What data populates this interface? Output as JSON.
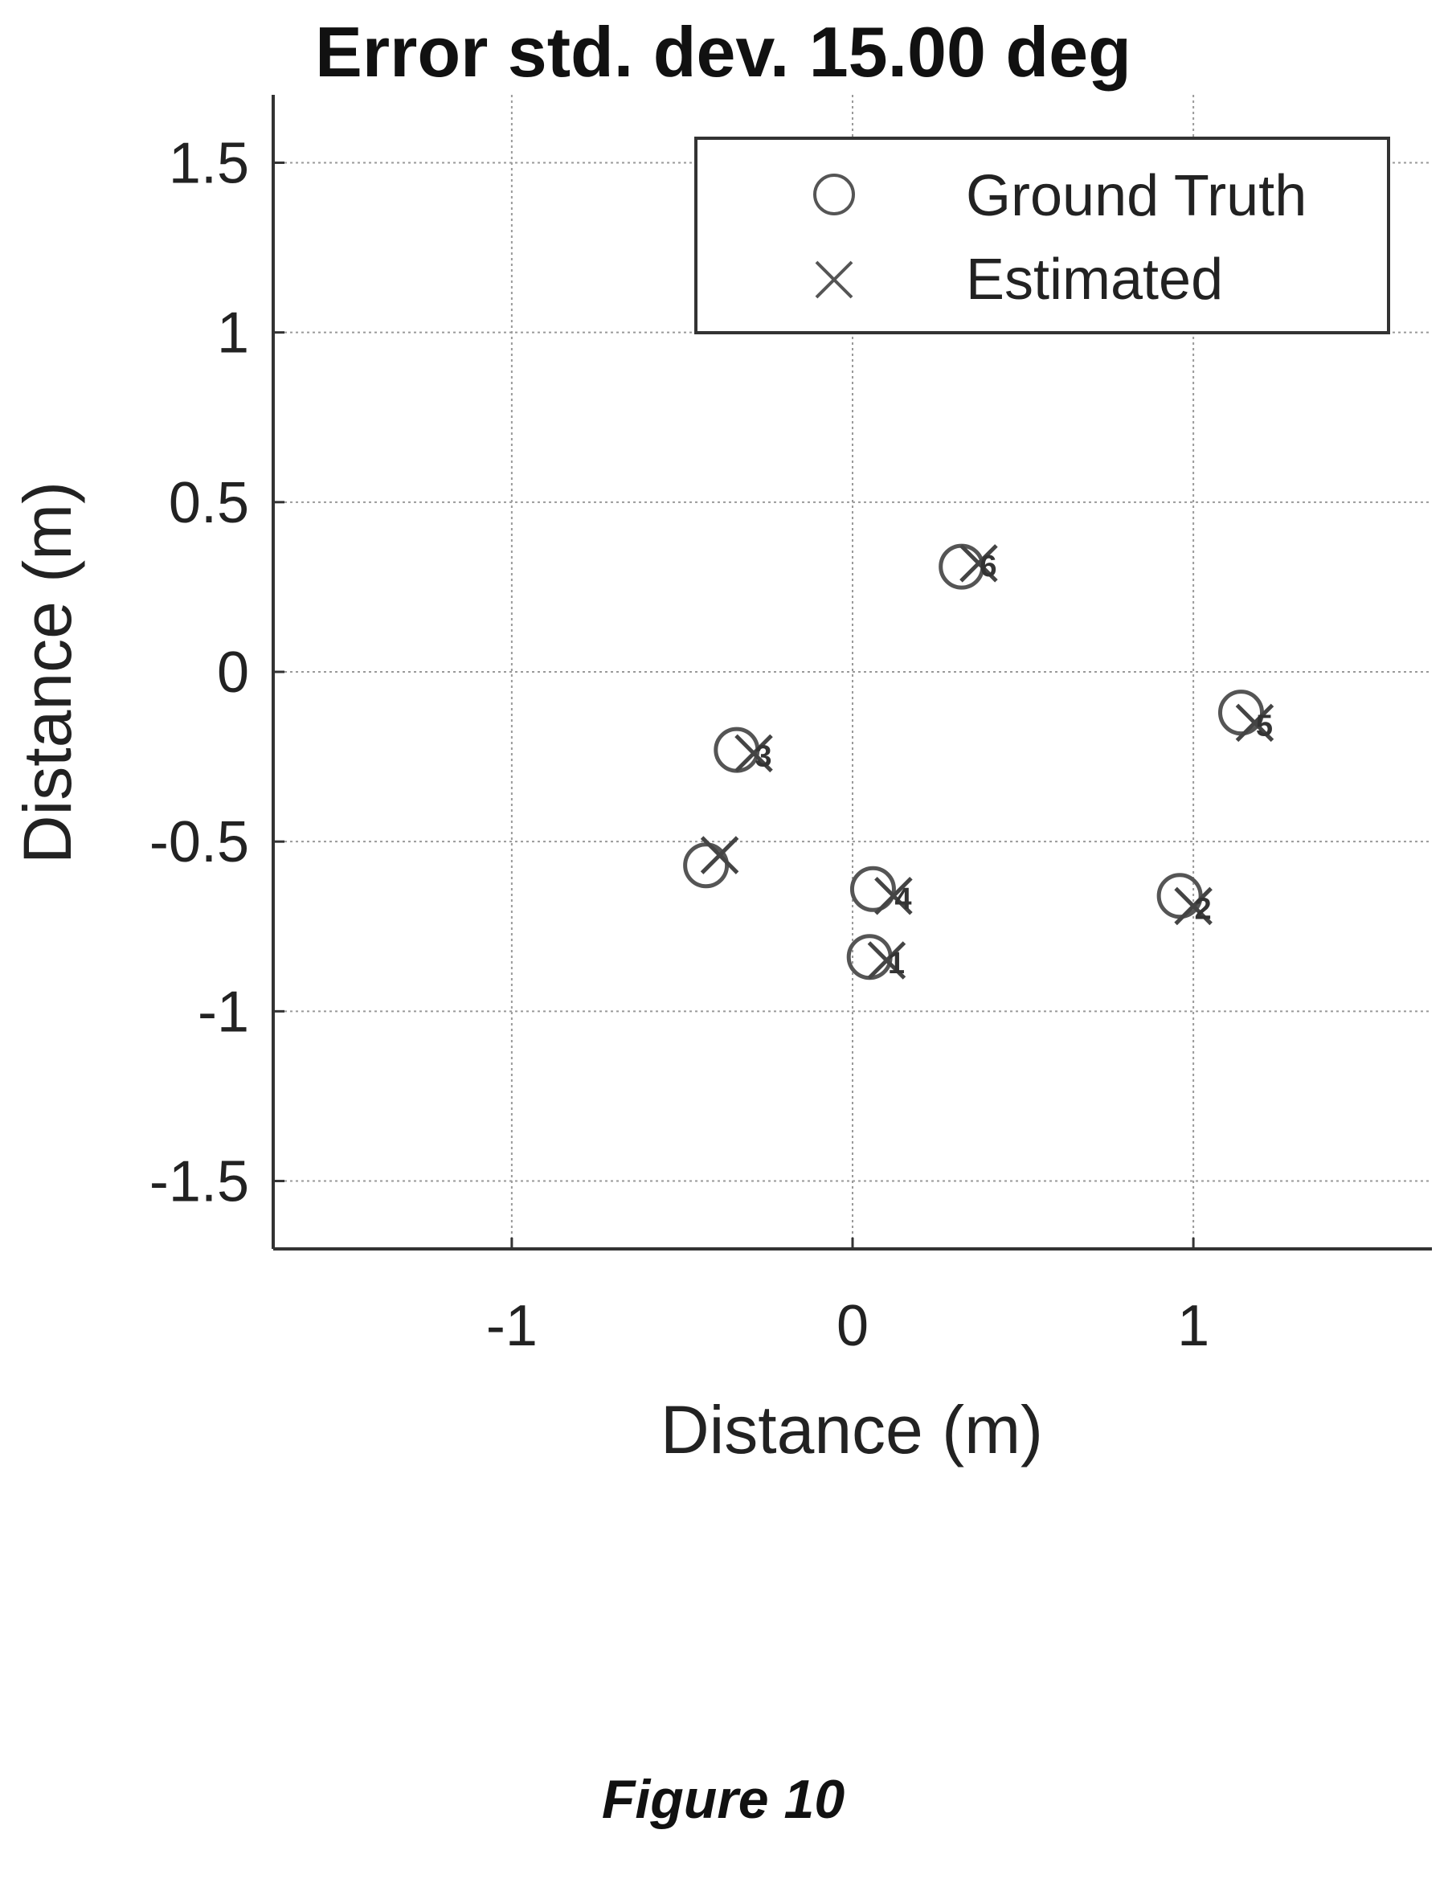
{
  "chart_data": {
    "type": "scatter",
    "title": "Error std. dev. 15.00 deg",
    "xlabel": "Distance (m)",
    "ylabel": "Distance (m)",
    "xlim": [
      -1.7,
      1.7
    ],
    "ylim": [
      -1.7,
      1.7
    ],
    "xticks": [
      -1,
      0,
      1
    ],
    "xtick_labels": [
      "-1",
      "0",
      "1"
    ],
    "yticks": [
      1.5,
      1,
      0.5,
      0,
      -0.5,
      -1,
      -1.5
    ],
    "ytick_labels": [
      "1.5",
      "1",
      "0.5",
      "0",
      "-0.5",
      "-1",
      "-1.5"
    ],
    "grid": true,
    "legend_position": "top-right",
    "series": [
      {
        "name": "Ground Truth",
        "marker": "circle",
        "points": [
          {
            "label": "1",
            "x": 0.05,
            "y": -0.84
          },
          {
            "label": "2",
            "x": 0.96,
            "y": -0.66
          },
          {
            "label": "3",
            "x": -0.34,
            "y": -0.23
          },
          {
            "label": "4",
            "x": 0.06,
            "y": -0.64
          },
          {
            "label": "5",
            "x": 1.14,
            "y": -0.12
          },
          {
            "label": "6",
            "x": 0.32,
            "y": 0.31
          },
          {
            "label": "",
            "x": -0.43,
            "y": -0.57
          }
        ]
      },
      {
        "name": "Estimated",
        "marker": "x",
        "points": [
          {
            "label": "1",
            "x": 0.1,
            "y": -0.85
          },
          {
            "label": "2",
            "x": 1.0,
            "y": -0.69
          },
          {
            "label": "3",
            "x": -0.29,
            "y": -0.24
          },
          {
            "label": "4",
            "x": 0.12,
            "y": -0.66
          },
          {
            "label": "5",
            "x": 1.18,
            "y": -0.15
          },
          {
            "label": "6",
            "x": 0.37,
            "y": 0.32
          },
          {
            "label": "",
            "x": -0.39,
            "y": -0.54
          }
        ]
      }
    ],
    "caption": "Figure 10"
  }
}
